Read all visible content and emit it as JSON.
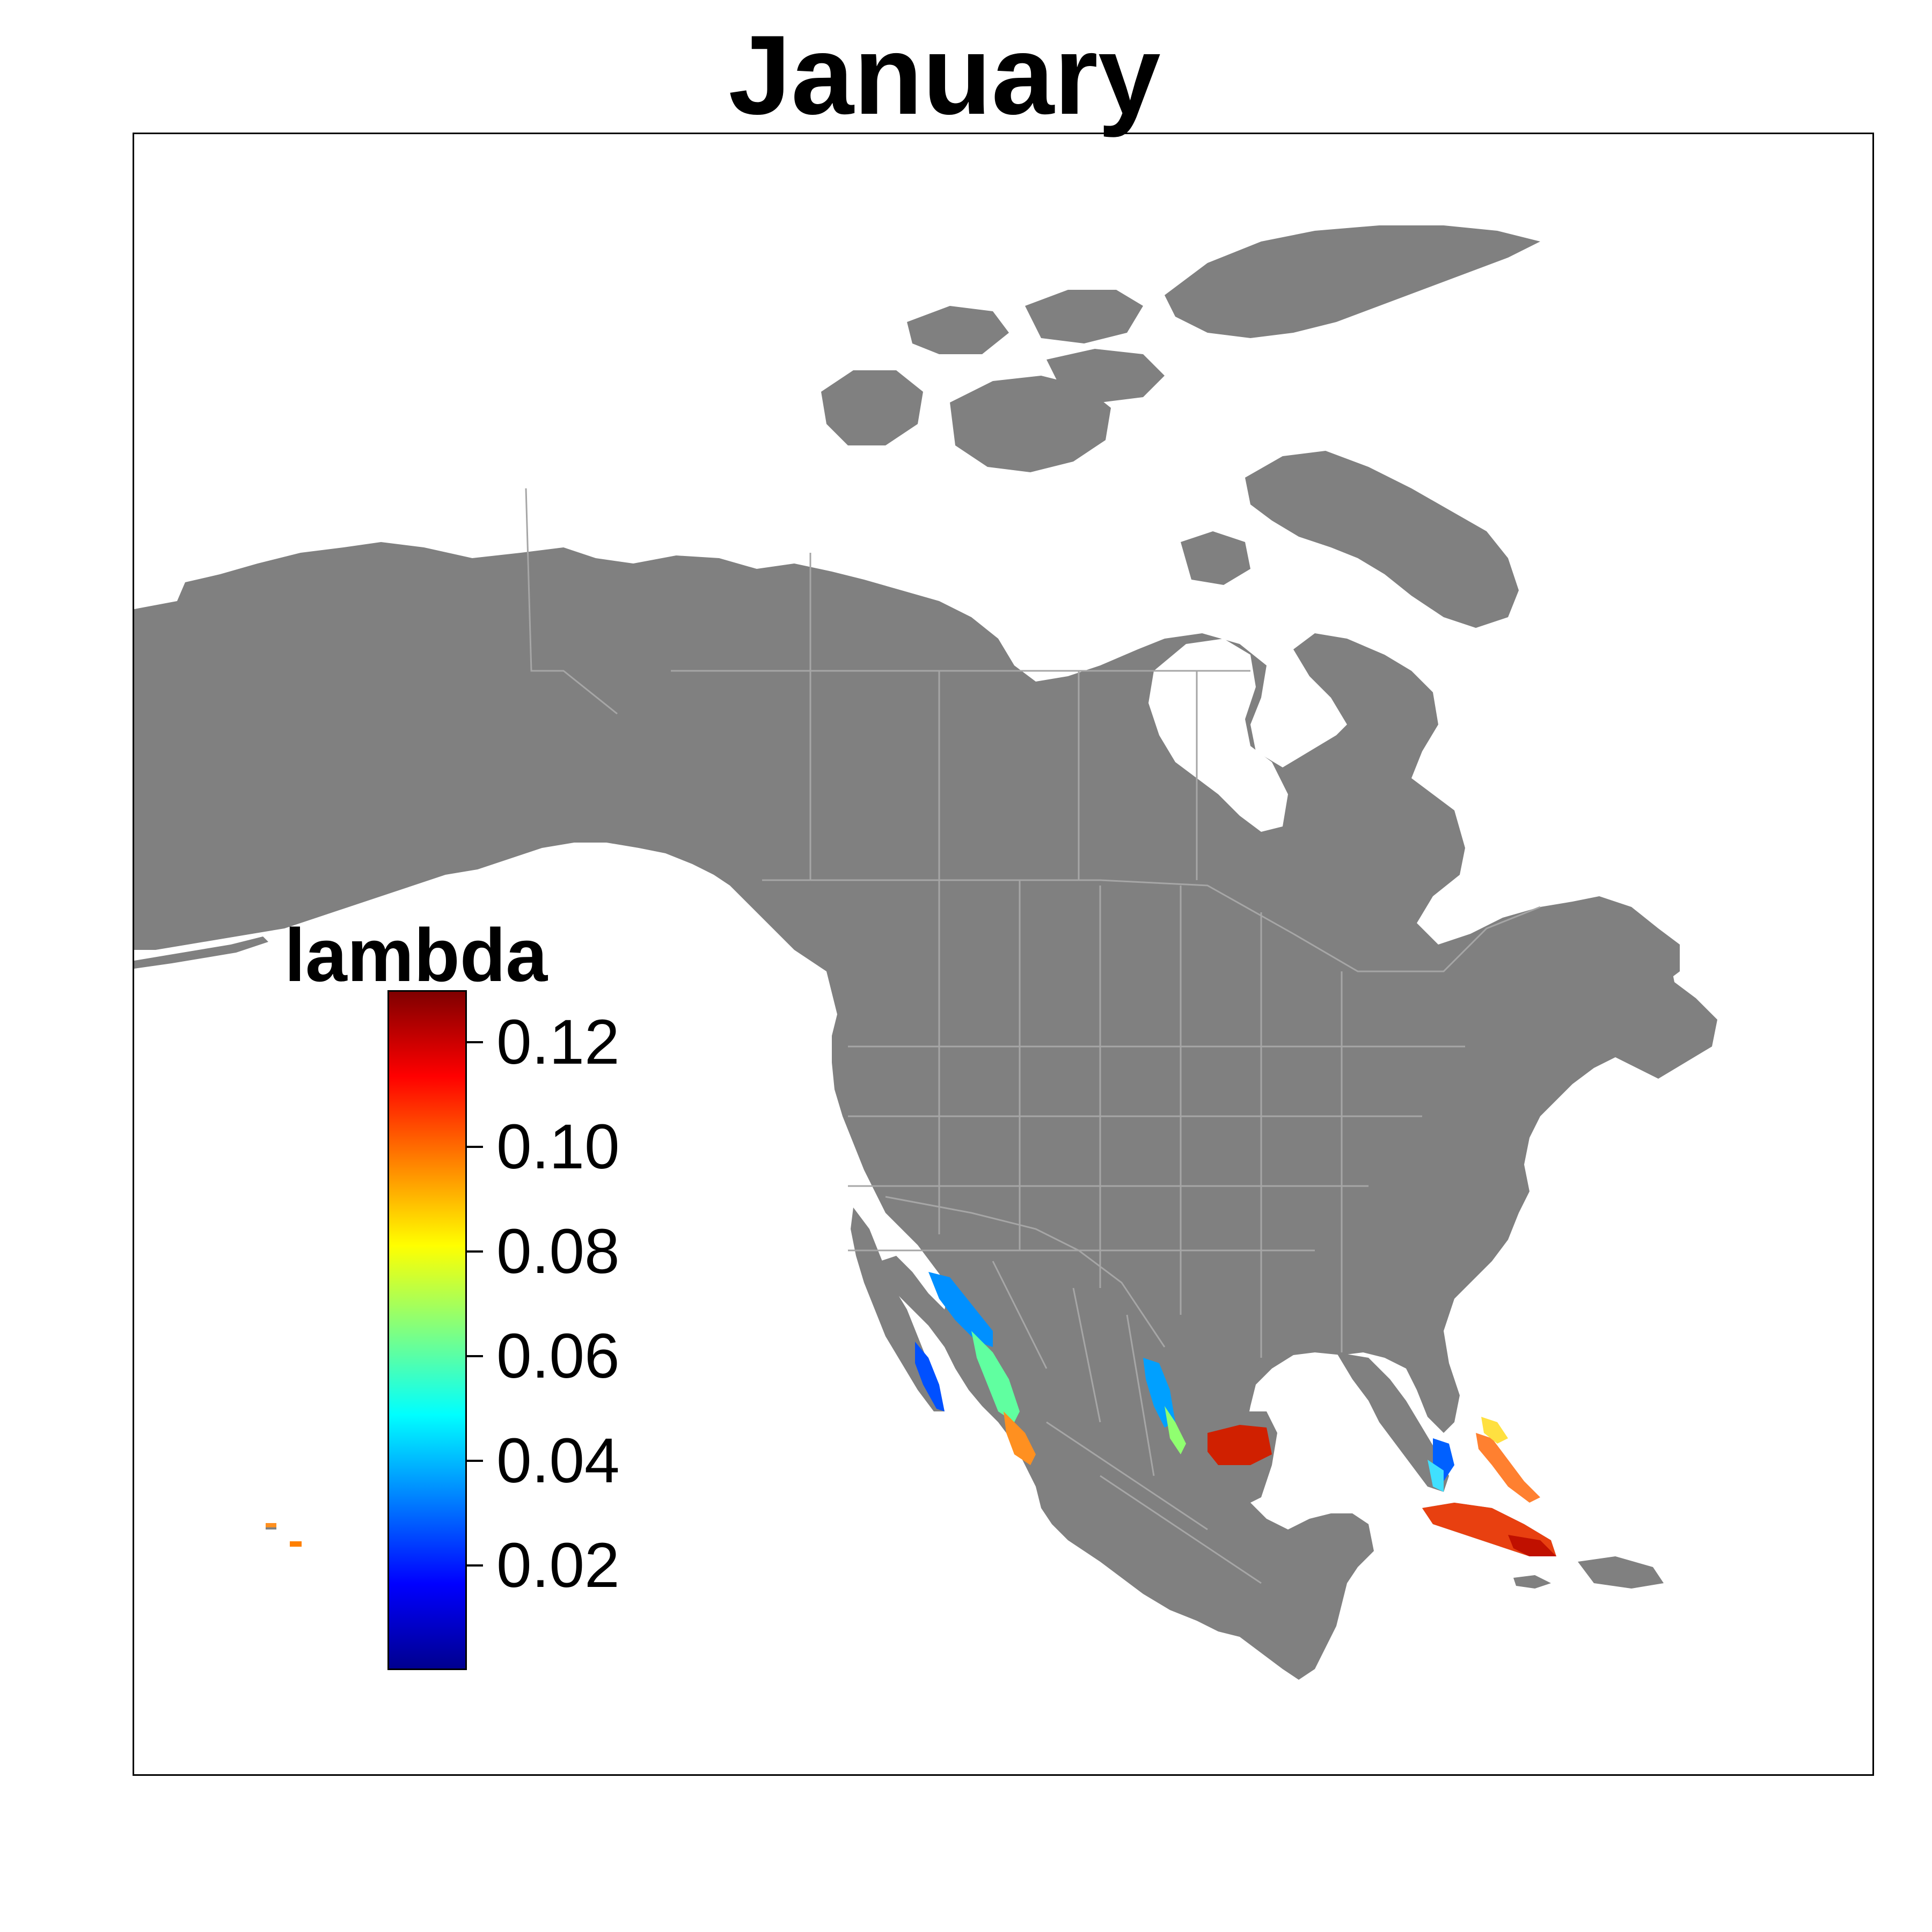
{
  "title": "January",
  "legend": {
    "title": "lambda",
    "ticks": [
      {
        "value": 0.12,
        "label": "0.12"
      },
      {
        "value": 0.1,
        "label": "0.10"
      },
      {
        "value": 0.08,
        "label": "0.08"
      },
      {
        "value": 0.06,
        "label": "0.06"
      },
      {
        "value": 0.04,
        "label": "0.04"
      },
      {
        "value": 0.02,
        "label": "0.02"
      }
    ],
    "min": 0.0,
    "max": 0.13,
    "palette": [
      "#00008F",
      "#0000FF",
      "#0080FF",
      "#00FFFF",
      "#80FF80",
      "#FFFF00",
      "#FF8000",
      "#FF0000",
      "#800000"
    ]
  },
  "colors": {
    "land": "#808080",
    "borders": "#A6A6A6",
    "background": "#FFFFFF"
  }
}
